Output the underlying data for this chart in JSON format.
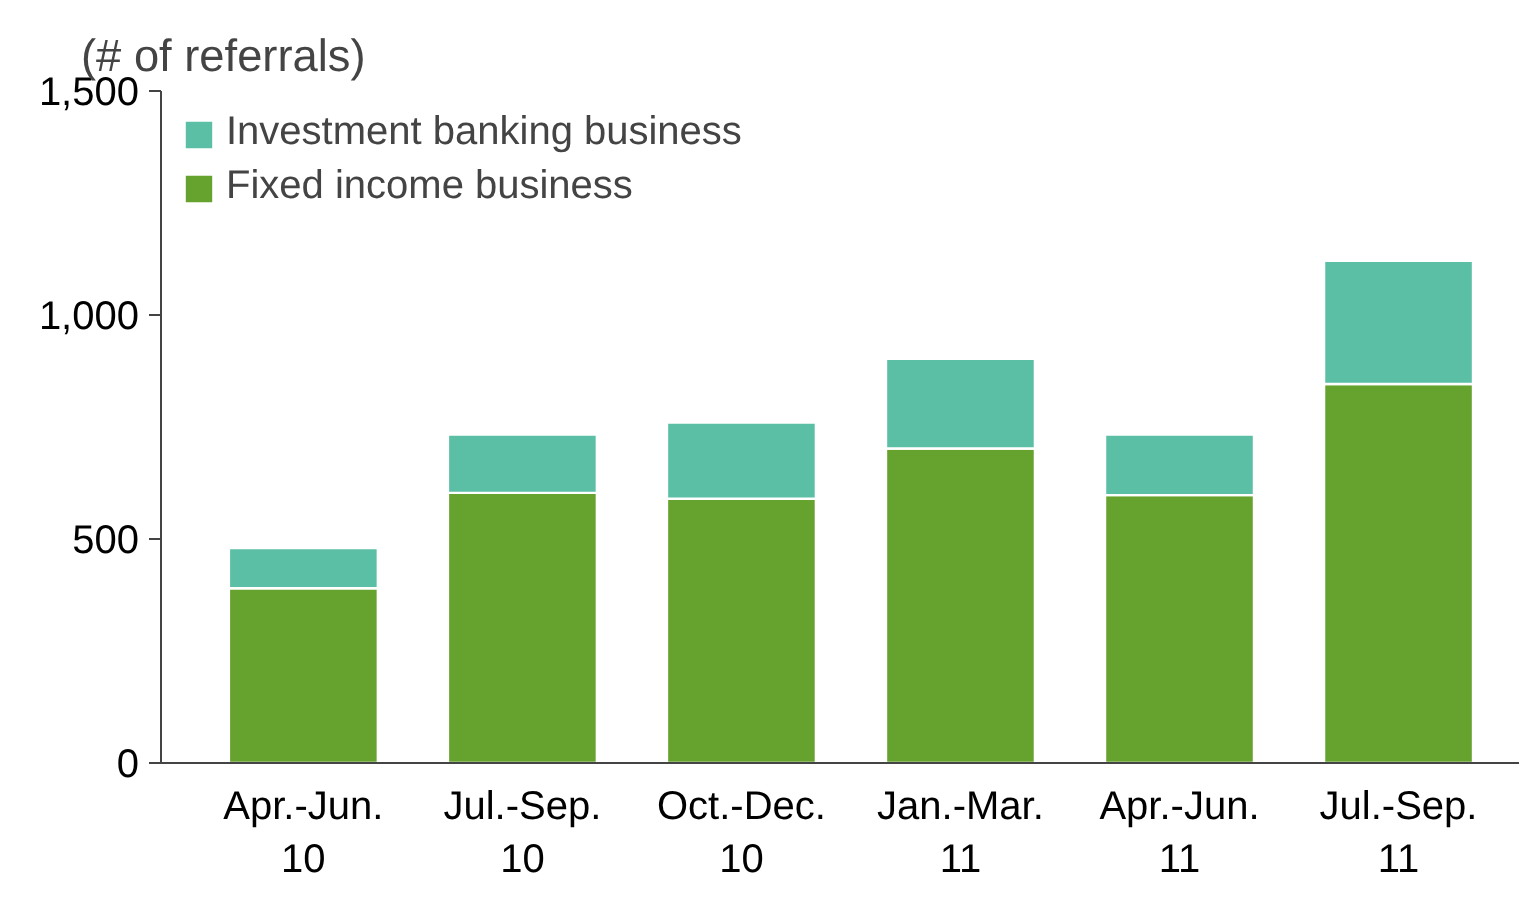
{
  "chart_data": {
    "type": "bar",
    "stacked": true,
    "ylabel": "(# of referrals)",
    "categories": [
      "Apr.-Jun.\n10",
      "Jul.-Sep.\n10",
      "Oct.-Dec.\n10",
      "Jan.-Mar.\n11",
      "Apr.-Jun.\n11",
      "Jul.-Sep.\n11"
    ],
    "series": [
      {
        "name": "Fixed income business",
        "color": "#66a22e",
        "values": [
          390,
          603,
          590,
          702,
          598,
          846
        ]
      },
      {
        "name": "Investment banking business",
        "color": "#5bbfa6",
        "values": [
          90,
          130,
          170,
          200,
          135,
          275
        ]
      }
    ],
    "ylim": [
      0,
      1500
    ],
    "yticks": [
      {
        "value": 0,
        "label": "0"
      },
      {
        "value": 500,
        "label": "500"
      },
      {
        "value": 1000,
        "label": "1,000"
      },
      {
        "value": 1500,
        "label": "1,500"
      }
    ],
    "grid": false,
    "legend": "top left"
  }
}
